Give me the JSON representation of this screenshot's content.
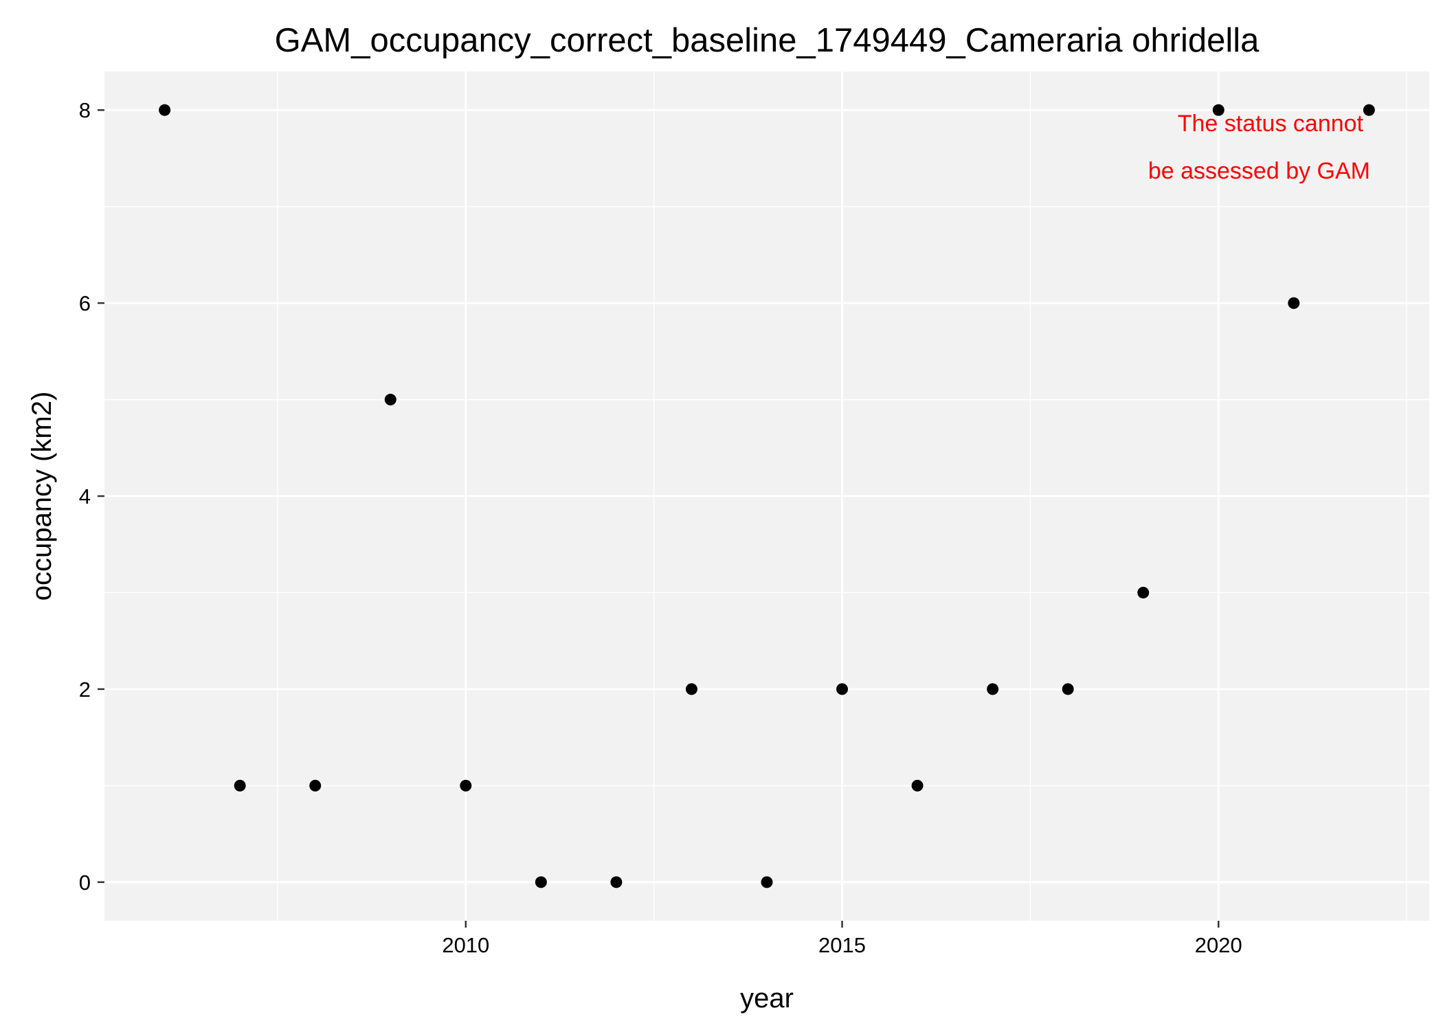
{
  "chart_data": {
    "type": "scatter",
    "title": "GAM_occupancy_correct_baseline_1749449_Cameraria ohridella",
    "xlabel": "year",
    "ylabel": "occupancy (km2)",
    "x": [
      2006,
      2007,
      2008,
      2009,
      2010,
      2011,
      2012,
      2013,
      2014,
      2015,
      2016,
      2017,
      2018,
      2019,
      2020,
      2021,
      2022
    ],
    "y": [
      8,
      1,
      1,
      5,
      1,
      0,
      0,
      2,
      0,
      2,
      1,
      2,
      2,
      3,
      8,
      6,
      8
    ],
    "xlim": [
      2005.2,
      2022.8
    ],
    "ylim": [
      -0.4,
      8.4
    ],
    "x_major_ticks": [
      2010,
      2015,
      2020
    ],
    "x_tick_labels": [
      "2010",
      "2015",
      "2020"
    ],
    "x_minor_ticks": [
      2007.5,
      2012.5,
      2017.5,
      2022.5
    ],
    "y_major_ticks": [
      0,
      2,
      4,
      6,
      8
    ],
    "y_tick_labels": [
      "0",
      "2",
      "4",
      "6",
      "8"
    ],
    "y_minor_ticks": [
      1,
      3,
      5,
      7
    ],
    "grid": true,
    "legend": "none",
    "colors": {
      "panel_background": "#f2f2f2",
      "grid": "#ffffff",
      "points": "#000000",
      "annotation": "#ff0000"
    },
    "annotation": {
      "lines": [
        "The status cannot",
        "be assessed by GAM"
      ],
      "color": "#ff0000",
      "anchor": "top-right"
    }
  }
}
